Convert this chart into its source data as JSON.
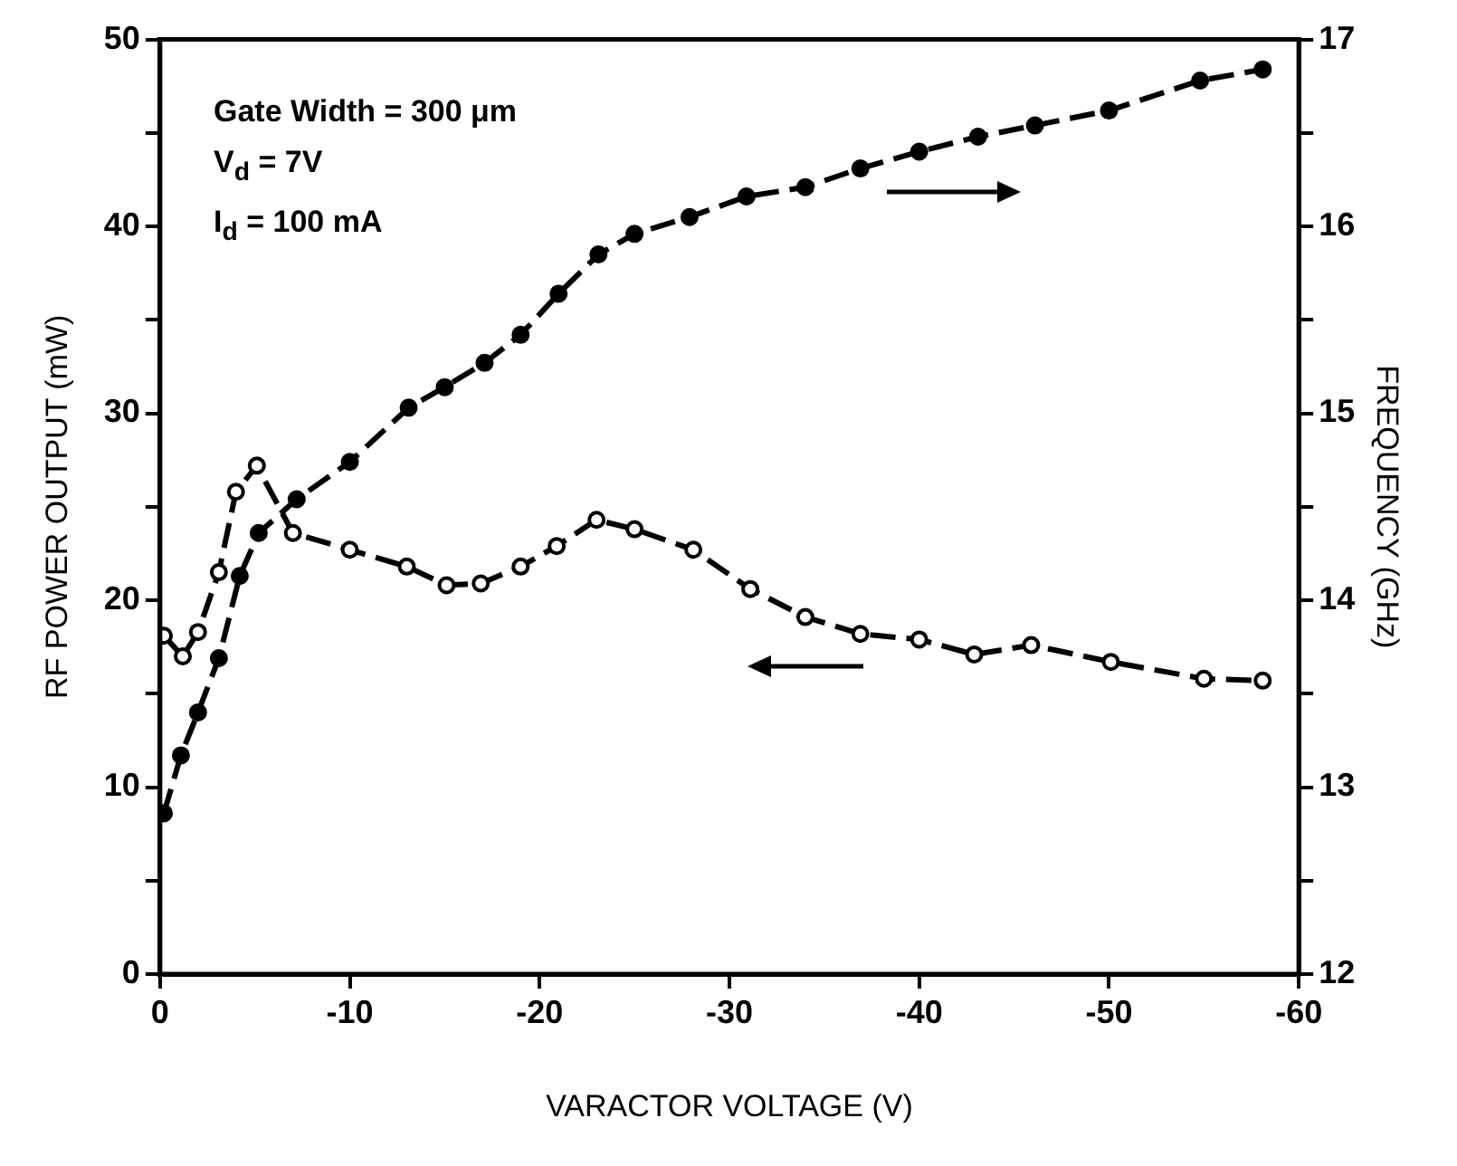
{
  "chart_data": {
    "type": "line",
    "xlabel": "VARACTOR VOLTAGE (V)",
    "ylabel": "RF POWER OUTPUT (mW)",
    "y2label": "FREQUENCY (GHz)",
    "annotations": [
      "Gate Width = 300 μm",
      "V$_{d}$ = 7V",
      "I$_{d}$ = 100 mA"
    ],
    "xlim": [
      0,
      -60
    ],
    "xticks": [
      0,
      -10,
      -20,
      -30,
      -40,
      -50,
      -60
    ],
    "ylim": [
      0,
      50
    ],
    "yticks": [
      0,
      10,
      20,
      30,
      40,
      50
    ],
    "y2lim": [
      12,
      17
    ],
    "y2ticks": [
      12,
      13,
      14,
      15,
      16,
      17
    ],
    "marker": "circle",
    "line_style": "dashed",
    "series": [
      {
        "color": "#000000",
        "axis": "y",
        "x": [
          -0.2,
          -1.2,
          -2.0,
          -3.1,
          -4.0,
          -5.1,
          -7.0,
          -10.0,
          -13.0,
          -15.1,
          -16.9,
          -19.0,
          -20.9,
          -23.0,
          -25.0,
          -28.1,
          -31.1,
          -34.0,
          -36.9,
          -40.0,
          -42.9,
          -45.9,
          -50.1,
          -55.0,
          -58.1
        ],
        "values": [
          18.1,
          17.0,
          18.3,
          21.5,
          25.8,
          27.2,
          23.6,
          22.7,
          21.8,
          20.8,
          20.9,
          21.8,
          22.9,
          24.3,
          23.8,
          22.7,
          20.6,
          19.1,
          18.2,
          17.9,
          17.1,
          17.6,
          16.7,
          15.8,
          15.7
        ]
      },
      {
        "color": "#000000",
        "axis": "y2",
        "x": [
          -0.2,
          -1.1,
          -2.0,
          -3.1,
          -4.2,
          -5.2,
          -7.2,
          -10.0,
          -13.1,
          -15.0,
          -17.1,
          -19.0,
          -21.0,
          -23.1,
          -25.0,
          -27.9,
          -30.9,
          -34.0,
          -36.9,
          -40.0,
          -43.1,
          -46.1,
          -50.0,
          -54.8,
          -58.1
        ],
        "values": [
          12.86,
          13.17,
          13.4,
          13.69,
          14.13,
          14.36,
          14.54,
          14.74,
          15.03,
          15.14,
          15.27,
          15.42,
          15.64,
          15.85,
          15.96,
          16.05,
          16.16,
          16.21,
          16.31,
          16.4,
          16.48,
          16.54,
          16.62,
          16.78,
          16.84
        ]
      }
    ]
  }
}
